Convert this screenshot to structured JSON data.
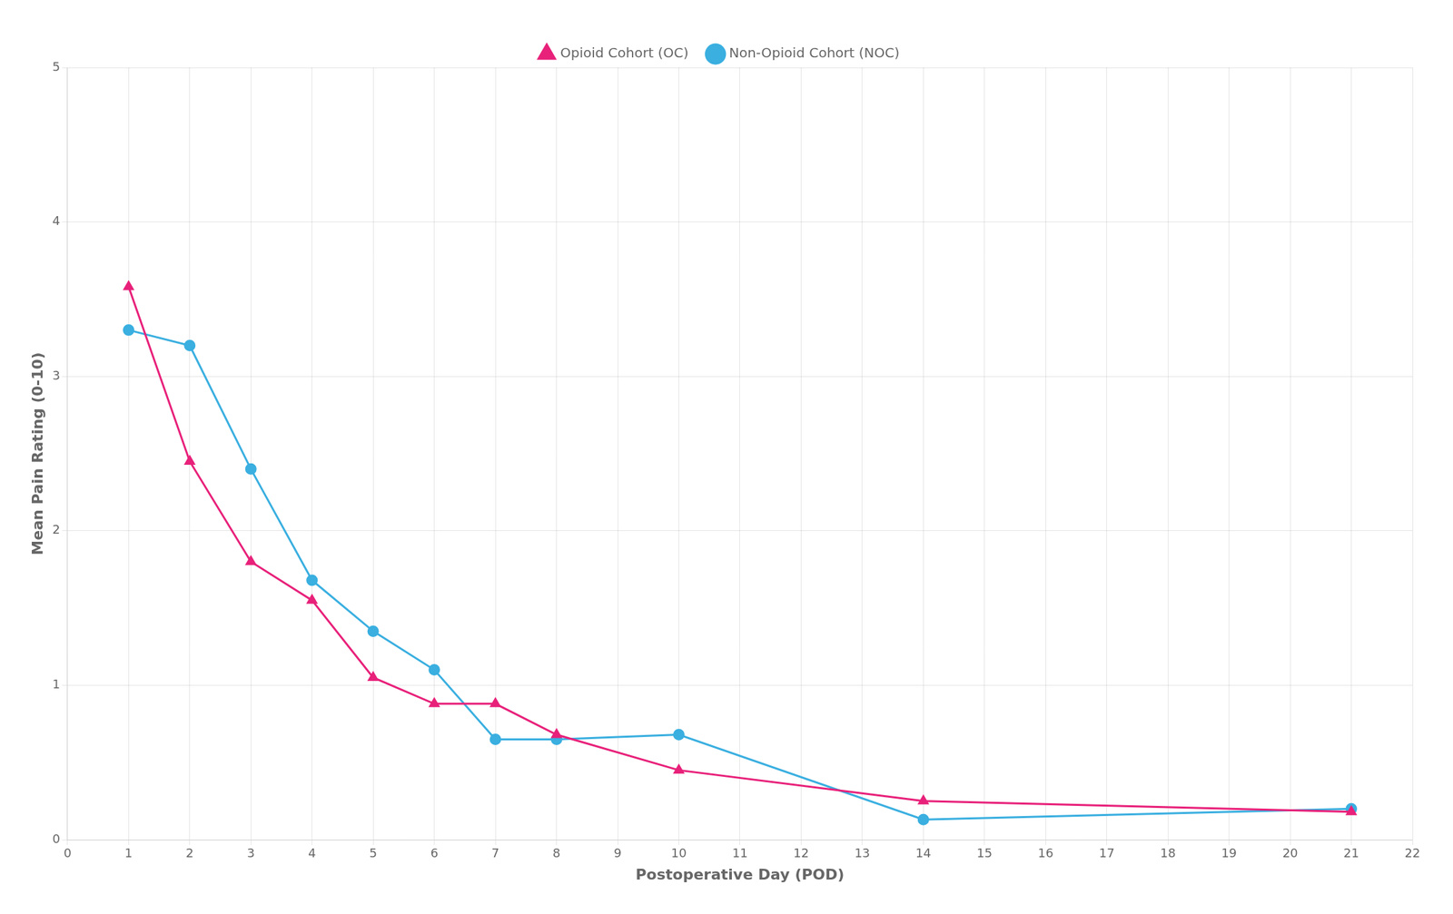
{
  "chart_data": {
    "type": "line",
    "x": [
      1,
      2,
      3,
      4,
      5,
      6,
      7,
      8,
      10,
      14,
      21
    ],
    "series": [
      {
        "name": "Opioid Cohort (OC)",
        "color": "#E8217A",
        "marker": "triangle",
        "values": [
          3.58,
          2.45,
          1.8,
          1.55,
          1.05,
          0.88,
          0.88,
          0.68,
          0.45,
          0.25,
          0.18
        ]
      },
      {
        "name": "Non-Opioid Cohort (NOC)",
        "color": "#3AAFE0",
        "marker": "circle",
        "values": [
          3.3,
          3.2,
          2.4,
          1.68,
          1.35,
          1.1,
          0.65,
          0.65,
          0.68,
          0.13,
          0.2
        ]
      }
    ],
    "xlabel": "Postoperative Day (POD)",
    "ylabel": "Mean Pain Rating (0-10)",
    "xlim": [
      0,
      22
    ],
    "ylim": [
      0,
      5
    ],
    "xticks": [
      0,
      1,
      2,
      3,
      4,
      5,
      6,
      7,
      8,
      9,
      10,
      11,
      12,
      13,
      14,
      15,
      16,
      17,
      18,
      19,
      20,
      21,
      22
    ],
    "yticks": [
      0,
      1,
      2,
      3,
      4,
      5
    ],
    "grid": true,
    "legend": "top"
  }
}
